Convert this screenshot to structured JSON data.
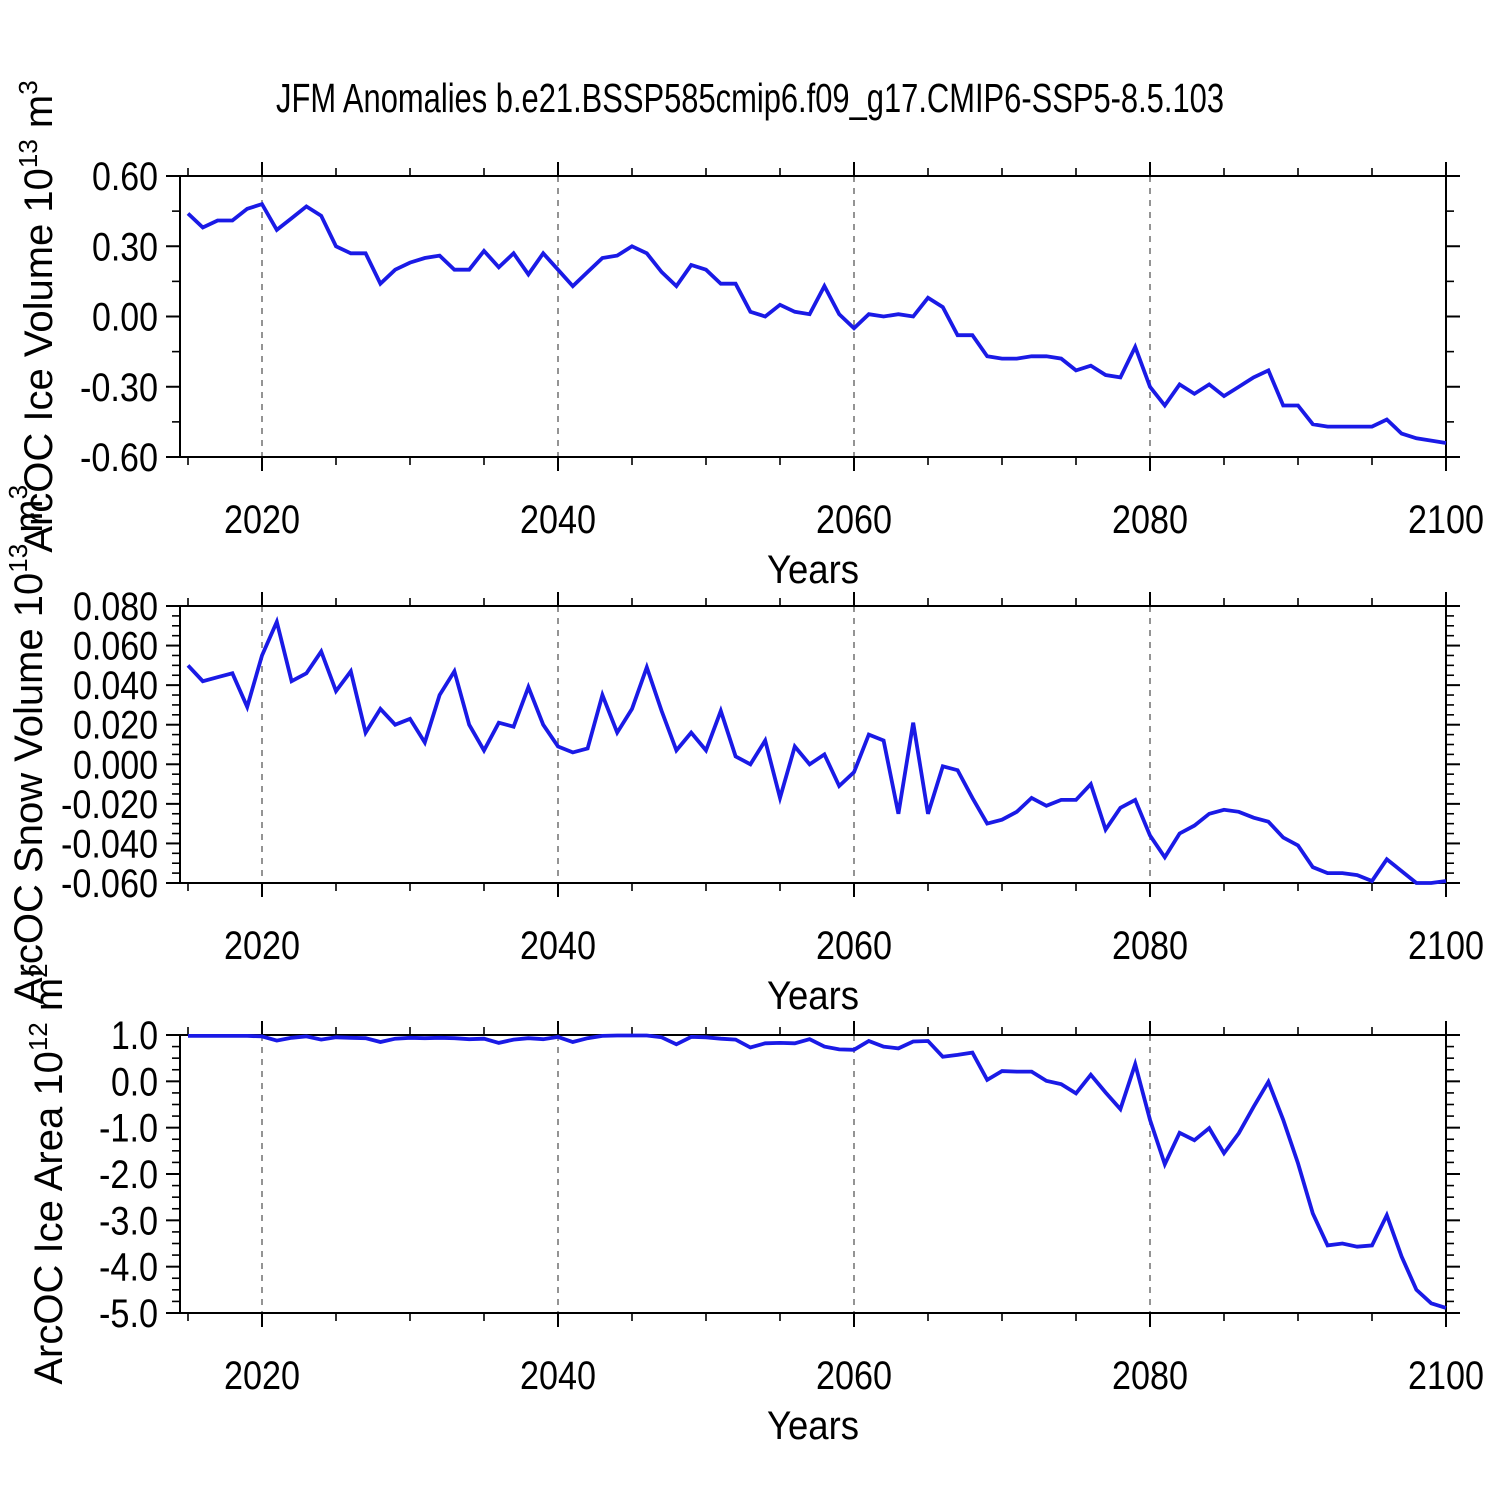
{
  "chart_data": {
    "type": "line",
    "title": "JFM Anomalies b.e21.BSSP585cmip6.f09_g17.CMIP6-SSP5-8.5.103",
    "xlabel": "Years",
    "x_range": {
      "start": 2015,
      "end": 2100,
      "step": 1
    },
    "x_major_ticks": [
      2020,
      2040,
      2060,
      2080,
      2100
    ],
    "x_major_tick_labels": [
      "2020",
      "2040",
      "2060",
      "2080",
      "2100"
    ],
    "x_minor_step": 5,
    "grid_x": [
      2020,
      2040,
      2060,
      2080
    ],
    "legend": "none",
    "grid": "vertical-dashed-only",
    "line_color": "#1a1ae6",
    "grid_color": "#7a7a7a",
    "axis_color": "#000000",
    "background_color": "#ffffff",
    "panels": [
      {
        "name": "ice-volume",
        "ylabel": "ArcOC Ice Volume 10^13 m^3",
        "ylabel_parts": [
          {
            "t": "ArcOC Ice Volume 10"
          },
          {
            "t": "13",
            "sup": true
          },
          {
            "t": " m"
          },
          {
            "t": "3",
            "sup": true
          }
        ],
        "ylim": [
          -0.6,
          0.6
        ],
        "y_minor_step": 0.15,
        "y_ticks": [
          {
            "v": 0.6,
            "label": "0.60"
          },
          {
            "v": 0.3,
            "label": "0.30"
          },
          {
            "v": 0.0,
            "label": "0.00"
          },
          {
            "v": -0.3,
            "label": "-0.30"
          },
          {
            "v": -0.6,
            "label": "-0.60"
          }
        ],
        "values": [
          0.44,
          0.38,
          0.41,
          0.41,
          0.46,
          0.48,
          0.37,
          0.42,
          0.47,
          0.43,
          0.3,
          0.27,
          0.27,
          0.14,
          0.2,
          0.23,
          0.25,
          0.26,
          0.2,
          0.2,
          0.28,
          0.21,
          0.27,
          0.18,
          0.27,
          0.2,
          0.13,
          0.19,
          0.25,
          0.26,
          0.3,
          0.27,
          0.19,
          0.13,
          0.22,
          0.2,
          0.14,
          0.14,
          0.02,
          0.0,
          0.05,
          0.02,
          0.01,
          0.13,
          0.01,
          -0.05,
          0.01,
          0.0,
          0.01,
          0.0,
          0.08,
          0.04,
          -0.08,
          -0.08,
          -0.17,
          -0.18,
          -0.18,
          -0.17,
          -0.17,
          -0.18,
          -0.23,
          -0.21,
          -0.25,
          -0.26,
          -0.13,
          -0.3,
          -0.38,
          -0.29,
          -0.33,
          -0.29,
          -0.34,
          -0.3,
          -0.26,
          -0.23,
          -0.38,
          -0.38,
          -0.46,
          -0.47,
          -0.47,
          -0.47,
          -0.47,
          -0.44,
          -0.5,
          -0.52,
          -0.53,
          -0.54
        ]
      },
      {
        "name": "snow-volume",
        "ylabel": "ArcOC Snow Volume 10^13 m^3",
        "ylabel_parts": [
          {
            "t": "ArcOC Snow Volume 10"
          },
          {
            "t": "13",
            "sup": true
          },
          {
            "t": " m"
          },
          {
            "t": "3",
            "sup": true
          }
        ],
        "ylim": [
          -0.06,
          0.08
        ],
        "y_minor_step": 0.005,
        "y_ticks": [
          {
            "v": 0.08,
            "label": "0.080"
          },
          {
            "v": 0.06,
            "label": "0.060"
          },
          {
            "v": 0.04,
            "label": "0.040"
          },
          {
            "v": 0.02,
            "label": "0.020"
          },
          {
            "v": 0.0,
            "label": "0.000"
          },
          {
            "v": -0.02,
            "label": "-0.020"
          },
          {
            "v": -0.04,
            "label": "-0.040"
          },
          {
            "v": -0.06,
            "label": "-0.060"
          }
        ],
        "values": [
          0.05,
          0.042,
          0.044,
          0.046,
          0.029,
          0.055,
          0.072,
          0.042,
          0.046,
          0.057,
          0.037,
          0.047,
          0.016,
          0.028,
          0.02,
          0.023,
          0.011,
          0.035,
          0.047,
          0.02,
          0.007,
          0.021,
          0.019,
          0.039,
          0.02,
          0.009,
          0.006,
          0.008,
          0.035,
          0.016,
          0.028,
          0.049,
          0.027,
          0.007,
          0.016,
          0.007,
          0.027,
          0.004,
          0.0,
          0.012,
          -0.017,
          0.009,
          0.0,
          0.005,
          -0.011,
          -0.004,
          0.015,
          0.012,
          -0.025,
          0.021,
          -0.025,
          -0.001,
          -0.003,
          -0.017,
          -0.03,
          -0.028,
          -0.024,
          -0.017,
          -0.021,
          -0.018,
          -0.018,
          -0.01,
          -0.033,
          -0.022,
          -0.018,
          -0.036,
          -0.047,
          -0.035,
          -0.031,
          -0.025,
          -0.023,
          -0.024,
          -0.027,
          -0.029,
          -0.037,
          -0.041,
          -0.052,
          -0.055,
          -0.055,
          -0.056,
          -0.059,
          -0.048,
          -0.054,
          -0.06,
          -0.06,
          -0.059
        ]
      },
      {
        "name": "ice-area",
        "ylabel": "ArcOC Ice Area 10^12 m^2",
        "ylabel_parts": [
          {
            "t": "ArcOC Ice Area 10"
          },
          {
            "t": "12",
            "sup": true
          },
          {
            "t": " m"
          },
          {
            "t": "2",
            "sup": true
          }
        ],
        "ylim": [
          -5.0,
          1.0
        ],
        "y_minor_step": 0.25,
        "y_ticks": [
          {
            "v": 1.0,
            "label": "1.0"
          },
          {
            "v": 0.0,
            "label": "0.0"
          },
          {
            "v": -1.0,
            "label": "-1.0"
          },
          {
            "v": -2.0,
            "label": "-2.0"
          },
          {
            "v": -3.0,
            "label": "-3.0"
          },
          {
            "v": -4.0,
            "label": "-4.0"
          },
          {
            "v": -5.0,
            "label": "-5.0"
          }
        ],
        "values": [
          0.98,
          0.98,
          0.98,
          0.98,
          0.98,
          0.97,
          0.88,
          0.94,
          0.97,
          0.9,
          0.95,
          0.94,
          0.93,
          0.85,
          0.92,
          0.94,
          0.93,
          0.94,
          0.93,
          0.91,
          0.92,
          0.83,
          0.9,
          0.93,
          0.91,
          0.96,
          0.85,
          0.93,
          0.98,
          0.99,
          0.99,
          0.99,
          0.95,
          0.8,
          0.96,
          0.95,
          0.92,
          0.9,
          0.73,
          0.82,
          0.83,
          0.82,
          0.91,
          0.75,
          0.69,
          0.68,
          0.87,
          0.75,
          0.71,
          0.86,
          0.87,
          0.53,
          0.57,
          0.62,
          0.03,
          0.22,
          0.21,
          0.21,
          0.01,
          -0.06,
          -0.26,
          0.14,
          -0.24,
          -0.6,
          0.37,
          -0.83,
          -1.79,
          -1.11,
          -1.27,
          -1.01,
          -1.55,
          -1.12,
          -0.55,
          -0.01,
          -0.83,
          -1.77,
          -2.85,
          -3.54,
          -3.5,
          -3.57,
          -3.54,
          -2.89,
          -3.78,
          -4.5,
          -4.79,
          -4.89
        ]
      }
    ]
  }
}
